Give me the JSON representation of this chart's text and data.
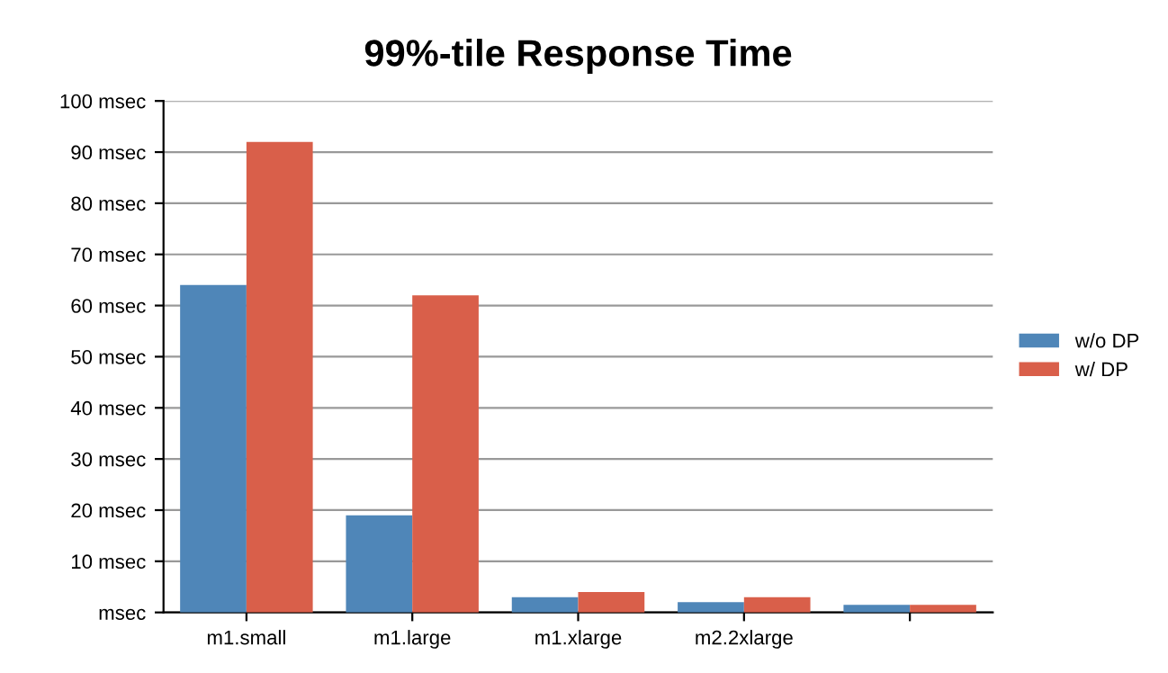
{
  "chart_data": {
    "type": "bar",
    "title": "99%-tile Response Time",
    "categories": [
      "m1.small",
      "m1.large",
      "m1.xlarge",
      "m2.2xlarge",
      null
    ],
    "series": [
      {
        "name": "w/o DP",
        "color": "#4f86b8",
        "values": [
          64,
          19,
          3,
          2,
          1.5
        ]
      },
      {
        "name": "w/ DP",
        "color": "#d95f4a",
        "values": [
          92,
          62,
          4,
          3,
          1.5
        ]
      }
    ],
    "ylim": [
      0,
      100
    ],
    "yticks": [
      {
        "value": 0,
        "label": "msec"
      },
      {
        "value": 10,
        "label": "10 msec"
      },
      {
        "value": 20,
        "label": "20 msec"
      },
      {
        "value": 30,
        "label": "30 msec"
      },
      {
        "value": 40,
        "label": "40 msec"
      },
      {
        "value": 50,
        "label": "50 msec"
      },
      {
        "value": 60,
        "label": "60 msec"
      },
      {
        "value": 70,
        "label": "70 msec"
      },
      {
        "value": 80,
        "label": "80 msec"
      },
      {
        "value": 90,
        "label": "90 msec"
      },
      {
        "value": 100,
        "label": "100 msec"
      }
    ],
    "grid": "y",
    "legend": "right"
  }
}
